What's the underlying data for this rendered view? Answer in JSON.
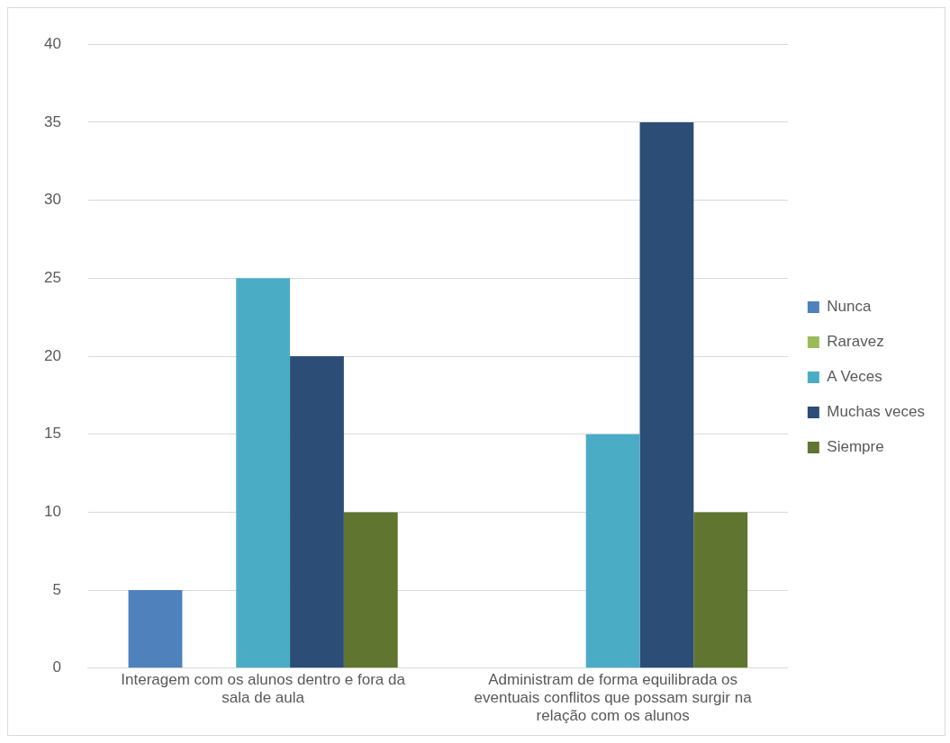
{
  "chart_data": {
    "type": "bar",
    "categories": [
      "Interagem com os alunos dentro e fora da sala de aula",
      "Administram de forma equilibrada os eventuais conflitos que possam surgir na relação com os alunos"
    ],
    "series": [
      {
        "name": "Nunca",
        "color": "#4f81bd",
        "values": [
          5,
          0
        ]
      },
      {
        "name": "Raravez",
        "color": "#9bbb59",
        "values": [
          0,
          0
        ]
      },
      {
        "name": "A Veces",
        "color": "#4bacc6",
        "values": [
          25,
          15
        ]
      },
      {
        "name": "Muchas veces",
        "color": "#2c4d75",
        "values": [
          20,
          35
        ]
      },
      {
        "name": "Siempre",
        "color": "#5f7530",
        "values": [
          10,
          10
        ]
      }
    ],
    "ylim": [
      0,
      40
    ],
    "yticks": [
      0,
      5,
      10,
      15,
      20,
      25,
      30,
      35,
      40
    ],
    "grid": "y",
    "legend": "right"
  }
}
